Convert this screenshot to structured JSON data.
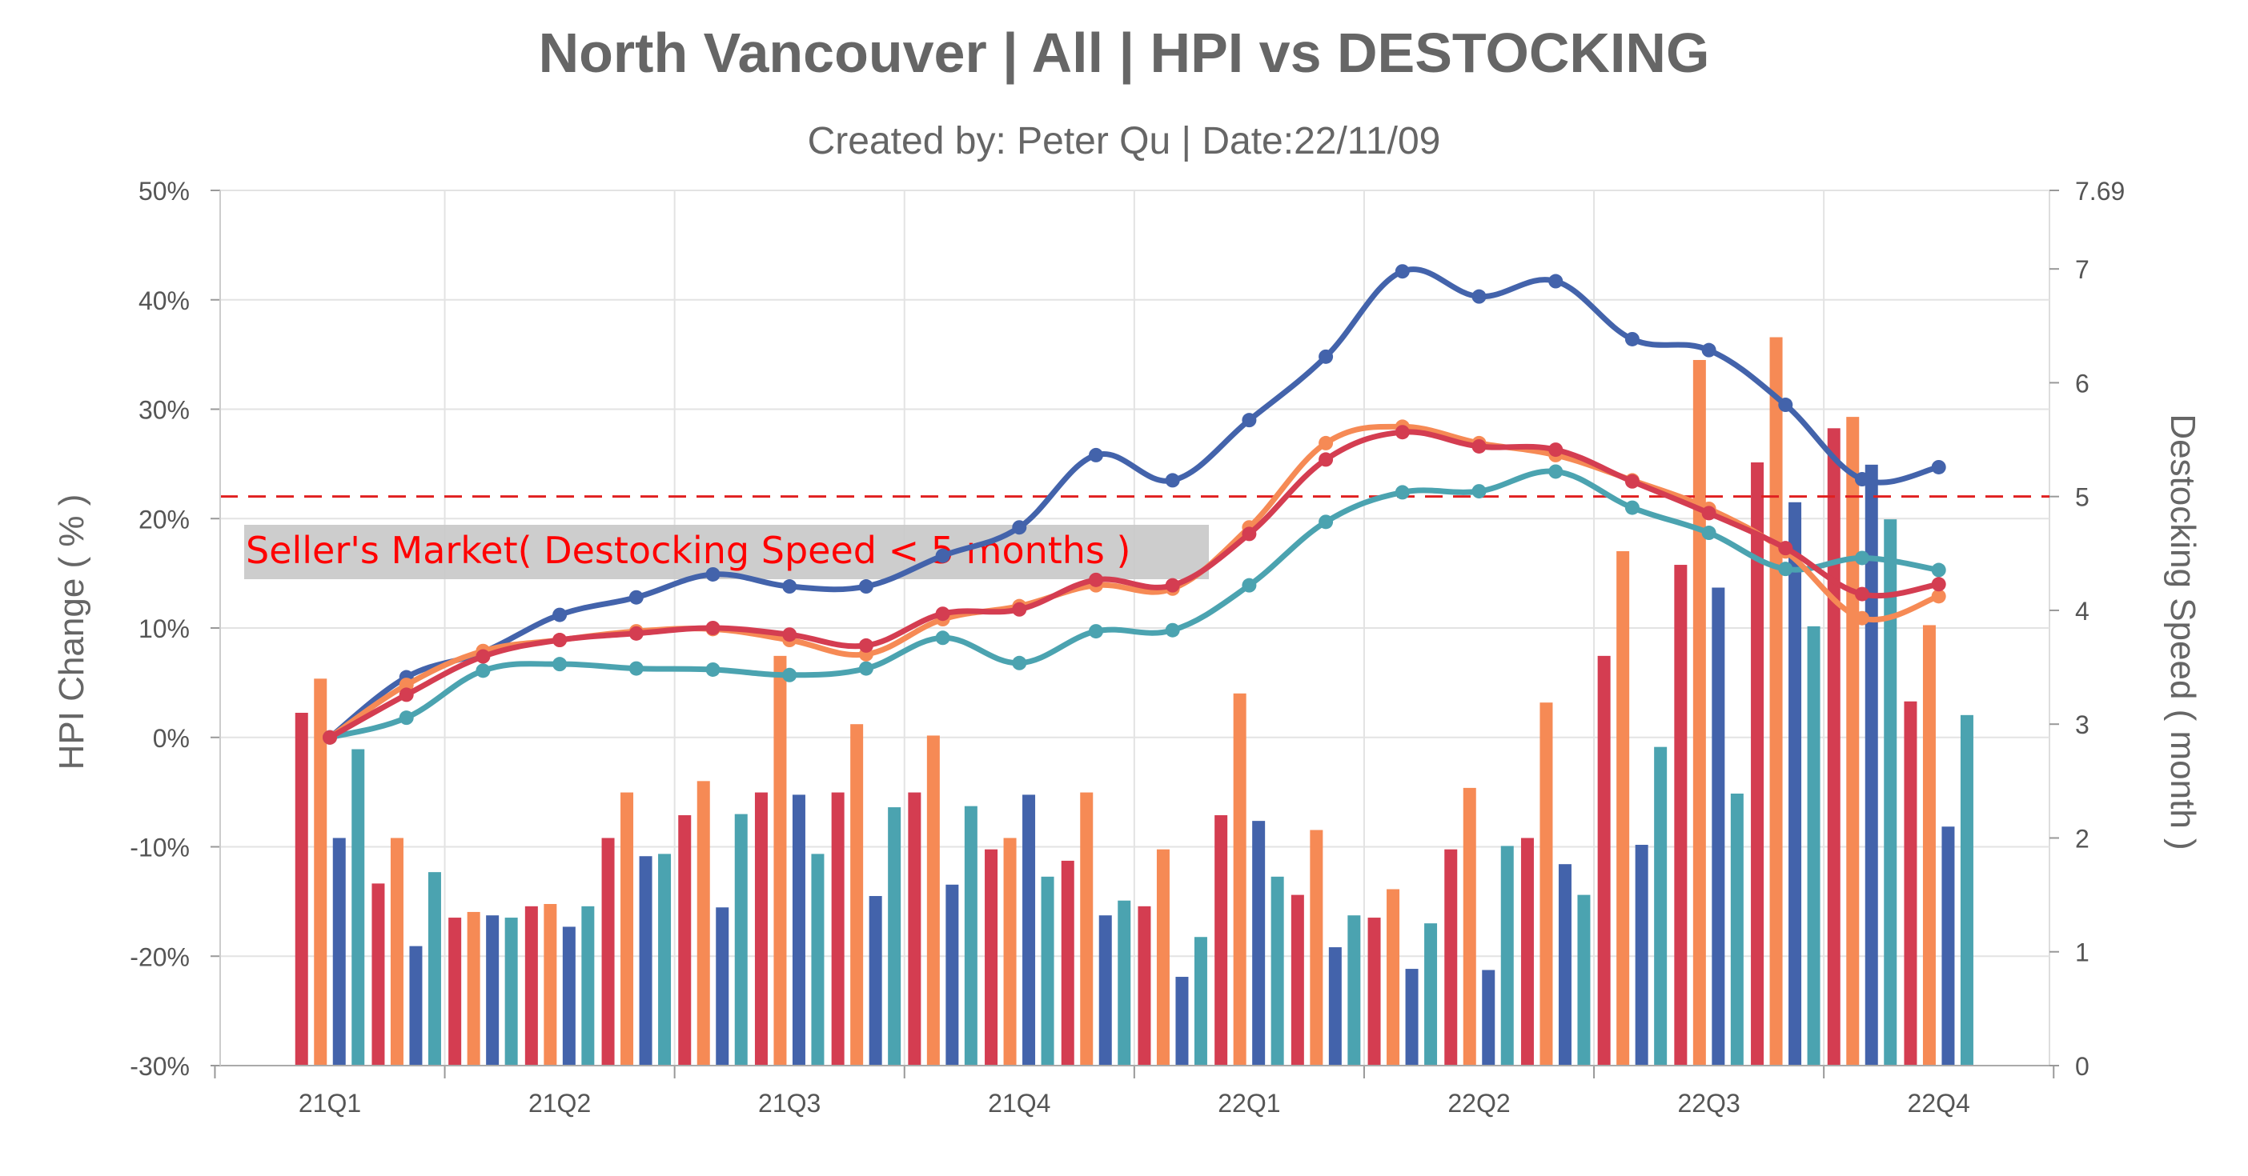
{
  "chart_data": {
    "type": "bar+line",
    "title": "North Vancouver | All | HPI vs DESTOCKING",
    "subtitle": "Created by: Peter Qu | Date:22/11/09",
    "ylabel_left": "HPI Change ( % )",
    "ylabel_right": "Destocking Speed ( month )",
    "ylim_left": [
      -30,
      50
    ],
    "ylim_right": [
      0,
      7.69
    ],
    "yticks_left": [
      "50%",
      "40%",
      "30%",
      "20%",
      "10%",
      "0%",
      "-10%",
      "-20%",
      "-30%"
    ],
    "yticks_right": [
      "7.69",
      "7",
      "6",
      "5",
      "4",
      "3",
      "2",
      "1",
      "0"
    ],
    "yticks_right_values": [
      7.69,
      7,
      6,
      5,
      4,
      3,
      2,
      1,
      0
    ],
    "x_tick_labels": [
      "21Q1",
      "21Q2",
      "21Q3",
      "21Q4",
      "22Q1",
      "22Q2",
      "22Q3",
      "22Q4"
    ],
    "x_tick_label_index": [
      0,
      3,
      6,
      9,
      12,
      15,
      18,
      21
    ],
    "n_points": 22,
    "grid": true,
    "series_colors": [
      "#d43d51",
      "#f68a55",
      "#4363ab",
      "#4ba3b0"
    ],
    "bars": [
      [
        3.1,
        1.6,
        1.3,
        1.4,
        2.0,
        2.2,
        2.4,
        2.4,
        2.4,
        1.9,
        1.8,
        1.4,
        2.2,
        1.5,
        1.3,
        1.9,
        2.0,
        3.6,
        4.4,
        5.3,
        5.6,
        3.2
      ],
      [
        3.4,
        2.0,
        1.35,
        1.42,
        2.4,
        2.5,
        3.6,
        3.0,
        2.9,
        2.0,
        2.4,
        1.9,
        3.27,
        2.07,
        1.55,
        2.44,
        3.19,
        4.52,
        6.2,
        6.4,
        5.7,
        3.87
      ],
      [
        2.0,
        1.05,
        1.32,
        1.22,
        1.84,
        1.39,
        2.38,
        1.49,
        1.59,
        2.38,
        1.32,
        0.78,
        2.15,
        1.04,
        0.85,
        0.84,
        1.77,
        1.94,
        4.2,
        4.95,
        5.28,
        2.1
      ],
      [
        2.78,
        1.7,
        1.3,
        1.4,
        1.86,
        2.21,
        1.86,
        2.27,
        2.28,
        1.66,
        1.45,
        1.13,
        1.66,
        1.32,
        1.25,
        1.93,
        1.5,
        2.8,
        2.39,
        3.86,
        4.8,
        3.08
      ]
    ],
    "lines": [
      [
        0,
        3.9,
        7.4,
        8.9,
        9.5,
        10.0,
        9.4,
        8.4,
        11.3,
        11.7,
        14.4,
        13.9,
        18.6,
        25.4,
        27.9,
        26.6,
        26.3,
        23.4,
        20.5,
        17.3,
        13.1,
        14.0
      ],
      [
        0,
        4.8,
        7.9,
        8.9,
        9.7,
        9.9,
        8.9,
        7.6,
        10.8,
        12.0,
        13.9,
        13.6,
        19.2,
        26.9,
        28.4,
        26.9,
        25.8,
        23.5,
        20.9,
        17.0,
        10.9,
        12.9
      ],
      [
        0,
        5.5,
        7.8,
        11.2,
        12.8,
        14.9,
        13.8,
        13.8,
        16.6,
        19.2,
        25.8,
        23.5,
        29.0,
        34.8,
        42.6,
        40.3,
        41.7,
        36.4,
        35.4,
        30.4,
        23.6,
        24.7
      ],
      [
        0,
        1.8,
        6.1,
        6.7,
        6.3,
        6.2,
        5.7,
        6.3,
        9.1,
        6.8,
        9.7,
        9.8,
        13.9,
        19.7,
        22.4,
        22.5,
        24.3,
        21.0,
        18.7,
        15.4,
        16.4,
        15.3
      ]
    ],
    "threshold": {
      "value": 5,
      "axis": "right",
      "color": "#e02020",
      "label": "Seller's Market( Destocking Speed < 5 months )"
    }
  }
}
